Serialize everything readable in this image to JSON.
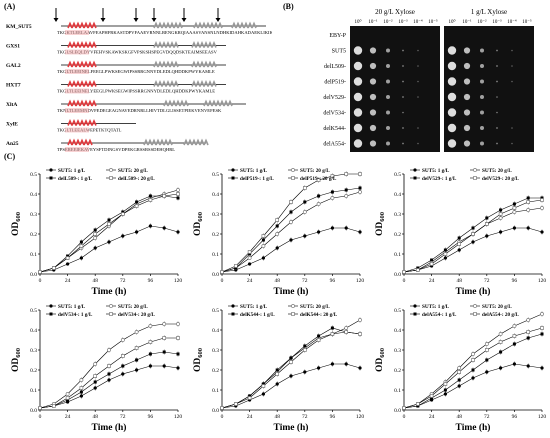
{
  "panel_a": {
    "label": "(A)",
    "rows": [
      {
        "name": "KM_SUT5",
        "seq": "TKGKTLEELAAVFEAPHFRKASTDPVFAAEVRNNLRENGKRQIAAASVANSNLNDHKIDAHKADAEKLIKIKEYV"
      },
      {
        "name": "GXS1",
        "seq": "TKGLSLEQLDYVFEHVSKAWKSKGFVPSKSHSPEGVDQQDSKTEAIMSEEASV"
      },
      {
        "name": "GAL2",
        "seq": "TKGLTLEEINELFEEGLPWKSEGWIPSSRRGNNYDLEDLQHDDKPWYKAMLE"
      },
      {
        "name": "HXT7",
        "seq": "TKGLTLEEINELYEEGLPWKSEGWIPSSRRGNNYDLEDLQHDDKPWYKAMLE"
      },
      {
        "name": "XltA",
        "seq": "TKNLTLEEMNDVFEDEGEAGNAVEDRNRLLHIVTDLGLISSETPIEKVENVEFESK"
      },
      {
        "name": "XylE",
        "seq": "TKGLTLEEALWEPETKTQTATL"
      },
      {
        "name": "An25",
        "seq": "TPSEREEIEKAVEYSFTDINGSVDPEKGRSSRSSDEHQHRL"
      }
    ]
  },
  "panel_b": {
    "label": "(B)",
    "conditions": [
      "20 g/L Xylose",
      "1 g/L Xylose"
    ],
    "dilutions": [
      "10⁰",
      "10⁻¹",
      "10⁻²",
      "10⁻³",
      "10⁻⁴",
      "10⁻⁵"
    ],
    "strains": [
      "EBY-P",
      "SUT5",
      "delL509-",
      "delP519-",
      "delV529-",
      "delV534-",
      "delK544-",
      "delA554-"
    ],
    "growth_20": [
      0,
      3,
      3,
      3,
      3,
      2,
      3,
      3
    ],
    "growth_1": [
      0,
      3,
      3,
      3,
      2,
      2,
      3,
      3
    ]
  },
  "panel_c": {
    "label": "(C)",
    "x_label": "Time (h)",
    "y_label": "OD",
    "y_label_sub": "600"
  },
  "chart_data": [
    {
      "type": "line",
      "xlabel": "Time (h)",
      "ylabel": "OD600",
      "ylim": [
        0,
        0.5
      ],
      "x": [
        0,
        12,
        24,
        36,
        48,
        60,
        72,
        84,
        96,
        108,
        120
      ],
      "series": [
        {
          "name": "SUT5: 1 g/L",
          "marker": "filled-circle",
          "values": [
            0.01,
            0.02,
            0.05,
            0.08,
            0.13,
            0.16,
            0.19,
            0.21,
            0.24,
            0.23,
            0.21
          ]
        },
        {
          "name": "SUT5: 20 g/L",
          "marker": "open-circle",
          "values": [
            0.01,
            0.03,
            0.08,
            0.13,
            0.18,
            0.24,
            0.3,
            0.35,
            0.38,
            0.4,
            0.42
          ]
        },
        {
          "name": "delL509-: 1 g/L",
          "marker": "filled-square",
          "values": [
            0.01,
            0.03,
            0.09,
            0.16,
            0.22,
            0.27,
            0.31,
            0.36,
            0.39,
            0.39,
            0.38
          ]
        },
        {
          "name": "delL509-: 20 g/L",
          "marker": "open-square",
          "values": [
            0.01,
            0.03,
            0.08,
            0.14,
            0.2,
            0.25,
            0.3,
            0.34,
            0.37,
            0.39,
            0.4
          ]
        }
      ]
    },
    {
      "type": "line",
      "xlabel": "Time (h)",
      "ylabel": "OD600",
      "ylim": [
        0,
        0.5
      ],
      "x": [
        0,
        12,
        24,
        36,
        48,
        60,
        72,
        84,
        96,
        108,
        120
      ],
      "series": [
        {
          "name": "SUT5: 1 g/L",
          "marker": "filled-circle",
          "values": [
            0.01,
            0.02,
            0.05,
            0.08,
            0.13,
            0.17,
            0.19,
            0.21,
            0.23,
            0.23,
            0.21
          ]
        },
        {
          "name": "SUT5: 20 g/L",
          "marker": "open-circle",
          "values": [
            0.01,
            0.03,
            0.08,
            0.14,
            0.2,
            0.26,
            0.31,
            0.35,
            0.38,
            0.39,
            0.41
          ]
        },
        {
          "name": "delP519-: 1 g/L",
          "marker": "filled-square",
          "values": [
            0.01,
            0.03,
            0.1,
            0.17,
            0.24,
            0.31,
            0.36,
            0.39,
            0.41,
            0.42,
            0.43
          ]
        },
        {
          "name": "delP519-: 20 g/L",
          "marker": "open-square",
          "values": [
            0.01,
            0.04,
            0.11,
            0.19,
            0.27,
            0.36,
            0.43,
            0.47,
            0.49,
            0.5,
            0.5
          ]
        }
      ]
    },
    {
      "type": "line",
      "xlabel": "Time (h)",
      "ylabel": "OD600",
      "ylim": [
        0,
        0.5
      ],
      "x": [
        0,
        12,
        24,
        36,
        48,
        60,
        72,
        84,
        96,
        108,
        120
      ],
      "series": [
        {
          "name": "SUT5: 1 g/L",
          "marker": "filled-circle",
          "values": [
            0.01,
            0.02,
            0.04,
            0.08,
            0.12,
            0.16,
            0.19,
            0.21,
            0.23,
            0.23,
            0.21
          ]
        },
        {
          "name": "SUT5: 20 g/L",
          "marker": "open-circle",
          "values": [
            0.01,
            0.02,
            0.06,
            0.11,
            0.16,
            0.2,
            0.25,
            0.28,
            0.31,
            0.32,
            0.33
          ]
        },
        {
          "name": "delV529-: 1 g/L",
          "marker": "filled-square",
          "values": [
            0.01,
            0.03,
            0.07,
            0.12,
            0.18,
            0.23,
            0.28,
            0.32,
            0.35,
            0.38,
            0.38
          ]
        },
        {
          "name": "delV529-: 20 g/L",
          "marker": "open-square",
          "values": [
            0.01,
            0.02,
            0.05,
            0.1,
            0.15,
            0.2,
            0.25,
            0.3,
            0.33,
            0.36,
            0.37
          ]
        }
      ]
    },
    {
      "type": "line",
      "xlabel": "Time (h)",
      "ylabel": "OD600",
      "ylim": [
        0,
        0.5
      ],
      "x": [
        0,
        12,
        24,
        36,
        48,
        60,
        72,
        84,
        96,
        108,
        120
      ],
      "series": [
        {
          "name": "SUT5: 1 g/L",
          "marker": "filled-circle",
          "values": [
            0.01,
            0.02,
            0.04,
            0.07,
            0.11,
            0.15,
            0.18,
            0.2,
            0.22,
            0.22,
            0.21
          ]
        },
        {
          "name": "SUT5: 20 g/L",
          "marker": "open-circle",
          "values": [
            0.01,
            0.03,
            0.08,
            0.15,
            0.23,
            0.3,
            0.35,
            0.39,
            0.42,
            0.43,
            0.43
          ]
        },
        {
          "name": "delV534-: 1 g/L",
          "marker": "filled-square",
          "values": [
            0.01,
            0.02,
            0.05,
            0.09,
            0.14,
            0.18,
            0.22,
            0.25,
            0.28,
            0.29,
            0.28
          ]
        },
        {
          "name": "delV534-: 20 g/L",
          "marker": "open-square",
          "values": [
            0.01,
            0.02,
            0.06,
            0.11,
            0.17,
            0.22,
            0.27,
            0.31,
            0.34,
            0.36,
            0.36
          ]
        }
      ]
    },
    {
      "type": "line",
      "xlabel": "Time (h)",
      "ylabel": "OD600",
      "ylim": [
        0,
        0.5
      ],
      "x": [
        0,
        12,
        24,
        36,
        48,
        60,
        72,
        84,
        96,
        108,
        120
      ],
      "series": [
        {
          "name": "SUT5: 1 g/L",
          "marker": "filled-circle",
          "values": [
            0.01,
            0.02,
            0.05,
            0.08,
            0.13,
            0.17,
            0.19,
            0.21,
            0.23,
            0.23,
            0.21
          ]
        },
        {
          "name": "SUT5: 20 g/L",
          "marker": "open-circle",
          "values": [
            0.01,
            0.03,
            0.07,
            0.13,
            0.19,
            0.26,
            0.31,
            0.36,
            0.38,
            0.41,
            0.45
          ]
        },
        {
          "name": "delK544-: 1 g/L",
          "marker": "filled-square",
          "values": [
            0.01,
            0.03,
            0.07,
            0.13,
            0.2,
            0.26,
            0.32,
            0.37,
            0.41,
            0.39,
            0.38
          ]
        },
        {
          "name": "delK544-: 20 g/L",
          "marker": "open-square",
          "values": [
            0.01,
            0.03,
            0.06,
            0.12,
            0.18,
            0.24,
            0.3,
            0.35,
            0.38,
            0.39,
            0.38
          ]
        }
      ]
    },
    {
      "type": "line",
      "xlabel": "Time (h)",
      "ylabel": "OD600",
      "ylim": [
        0,
        0.5
      ],
      "x": [
        0,
        12,
        24,
        36,
        48,
        60,
        72,
        84,
        96,
        108,
        120
      ],
      "series": [
        {
          "name": "SUT5: 1 g/L",
          "marker": "filled-circle",
          "values": [
            0.01,
            0.02,
            0.05,
            0.08,
            0.12,
            0.16,
            0.19,
            0.21,
            0.23,
            0.22,
            0.21
          ]
        },
        {
          "name": "SUT5: 20 g/L",
          "marker": "open-circle",
          "values": [
            0.01,
            0.03,
            0.08,
            0.14,
            0.21,
            0.28,
            0.33,
            0.38,
            0.42,
            0.45,
            0.48
          ]
        },
        {
          "name": "delA554-: 1 g/L",
          "marker": "filled-square",
          "values": [
            0.01,
            0.02,
            0.06,
            0.1,
            0.15,
            0.2,
            0.25,
            0.29,
            0.33,
            0.36,
            0.38
          ]
        },
        {
          "name": "delA554-: 20 g/L",
          "marker": "open-square",
          "values": [
            0.01,
            0.03,
            0.07,
            0.13,
            0.19,
            0.25,
            0.3,
            0.34,
            0.37,
            0.39,
            0.41
          ]
        }
      ]
    }
  ]
}
